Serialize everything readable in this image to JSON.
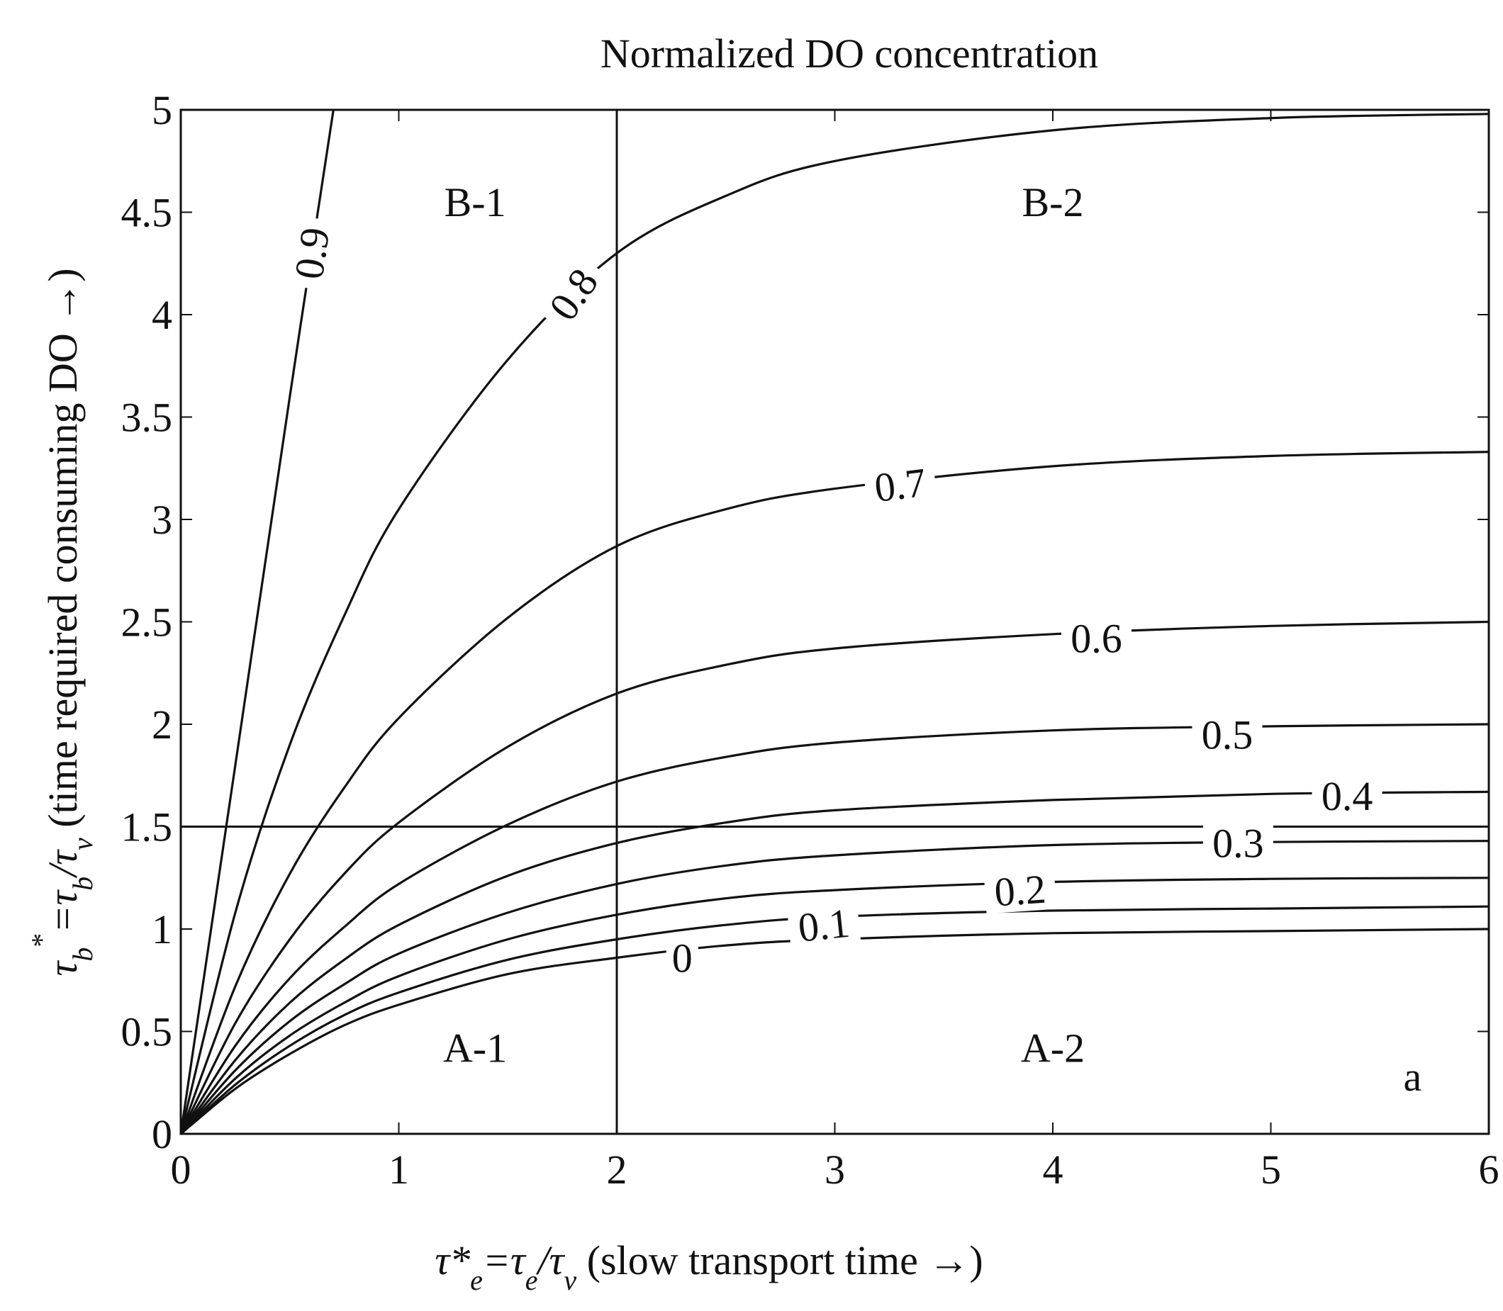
{
  "chart_data": {
    "type": "line",
    "title": "Normalized DO concentration",
    "xlabel": {
      "main": "τ*",
      "main_sub": "e",
      "eq": "=τ",
      "eq_sub": "e",
      "slash": "/τ",
      "slash_sub": "v",
      "desc": " (slow transport time →)"
    },
    "ylabel": {
      "main": "τ",
      "main_sub": "b",
      "star": "*",
      "eq": "=τ",
      "eq_sub": "b",
      "slash": "/τ",
      "slash_sub": "v",
      "desc": " (time required consuming DO →)"
    },
    "xlim": [
      0,
      6
    ],
    "ylim": [
      0,
      5
    ],
    "x_ticks": [
      0,
      1,
      2,
      3,
      4,
      5,
      6
    ],
    "x_tick_labels": [
      "0",
      "1",
      "2",
      "3",
      "4",
      "5",
      "6"
    ],
    "y_ticks": [
      0,
      0.5,
      1,
      1.5,
      2,
      2.5,
      3,
      3.5,
      4,
      4.5,
      5
    ],
    "y_tick_labels": [
      "0",
      "0.5",
      "1",
      "1.5",
      "2",
      "2.5",
      "3",
      "3.5",
      "4",
      "4.5",
      "5"
    ],
    "grid": false,
    "divider_lines": {
      "vertical_x": 2,
      "horizontal_y": 1.5
    },
    "series": [
      {
        "name": "0",
        "label": "0",
        "label_at": [
          2.3,
          0.86
        ],
        "label_angle": 0,
        "x": [
          0,
          0.25,
          0.5,
          0.75,
          1,
          1.5,
          2,
          2.5,
          3,
          4,
          5,
          6
        ],
        "y": [
          0,
          0.22,
          0.39,
          0.53,
          0.63,
          0.78,
          0.86,
          0.92,
          0.95,
          0.98,
          0.99,
          1.0
        ]
      },
      {
        "name": "0.1",
        "label": "0.1",
        "label_at": [
          2.95,
          1.02
        ],
        "label_angle": -6,
        "x": [
          0,
          0.25,
          0.5,
          0.75,
          1,
          1.5,
          2,
          2.5,
          3,
          4,
          5,
          6
        ],
        "y": [
          0,
          0.24,
          0.43,
          0.58,
          0.69,
          0.85,
          0.95,
          1.02,
          1.06,
          1.09,
          1.1,
          1.11
        ]
      },
      {
        "name": "0.2",
        "label": "0.2",
        "label_at": [
          3.85,
          1.19
        ],
        "label_angle": -4,
        "x": [
          0,
          0.25,
          0.5,
          0.75,
          1,
          1.5,
          2,
          2.5,
          3,
          4,
          5,
          6
        ],
        "y": [
          0,
          0.27,
          0.48,
          0.64,
          0.77,
          0.95,
          1.07,
          1.15,
          1.19,
          1.23,
          1.245,
          1.25
        ]
      },
      {
        "name": "0.3",
        "label": "0.3",
        "label_at": [
          4.85,
          1.42
        ],
        "label_angle": 0,
        "x": [
          0,
          0.25,
          0.5,
          0.75,
          1,
          1.5,
          2,
          2.5,
          3,
          4,
          5,
          6
        ],
        "y": [
          0,
          0.31,
          0.55,
          0.73,
          0.88,
          1.08,
          1.22,
          1.31,
          1.36,
          1.41,
          1.425,
          1.43
        ]
      },
      {
        "name": "0.4",
        "label": "0.4",
        "label_at": [
          5.35,
          1.65
        ],
        "label_angle": 0,
        "x": [
          0,
          0.25,
          0.5,
          0.75,
          1,
          1.5,
          2,
          2.5,
          3,
          4,
          5,
          6
        ],
        "y": [
          0,
          0.36,
          0.64,
          0.85,
          1.02,
          1.26,
          1.42,
          1.52,
          1.58,
          1.63,
          1.66,
          1.67
        ]
      },
      {
        "name": "0.5",
        "label": "0.5",
        "label_at": [
          4.8,
          1.95
        ],
        "label_angle": 0,
        "x": [
          0,
          0.25,
          0.5,
          0.75,
          1,
          1.5,
          2,
          2.5,
          3,
          4,
          5,
          6
        ],
        "y": [
          0,
          0.43,
          0.76,
          1.01,
          1.22,
          1.51,
          1.72,
          1.84,
          1.91,
          1.97,
          1.99,
          2.0
        ]
      },
      {
        "name": "0.6",
        "label": "0.6",
        "label_at": [
          4.2,
          2.42
        ],
        "label_angle": 0,
        "x": [
          0,
          0.25,
          0.5,
          0.75,
          1,
          1.5,
          2,
          2.5,
          3,
          4,
          5,
          6
        ],
        "y": [
          0,
          0.54,
          0.95,
          1.27,
          1.52,
          1.89,
          2.15,
          2.29,
          2.37,
          2.44,
          2.48,
          2.5
        ]
      },
      {
        "name": "0.7",
        "label": "0.7",
        "label_at": [
          3.3,
          3.17
        ],
        "label_angle": -7,
        "x": [
          0,
          0.25,
          0.5,
          0.75,
          1,
          1.5,
          2,
          2.5,
          3,
          4,
          5,
          6
        ],
        "y": [
          0,
          0.72,
          1.27,
          1.69,
          2.03,
          2.52,
          2.87,
          3.05,
          3.15,
          3.26,
          3.31,
          3.33
        ]
      },
      {
        "name": "0.8",
        "label": "0.8",
        "label_at": [
          1.8,
          4.1
        ],
        "label_angle": -55,
        "x": [
          0,
          0.25,
          0.5,
          0.75,
          1,
          1.5,
          2,
          2.5,
          3,
          4,
          5,
          6
        ],
        "y": [
          0,
          1.08,
          1.9,
          2.53,
          3.05,
          3.78,
          4.3,
          4.58,
          4.75,
          4.9,
          4.96,
          4.98
        ]
      },
      {
        "name": "0.9",
        "label": "0.9",
        "label_at": [
          0.6,
          4.3
        ],
        "label_angle": -82,
        "x": [
          0,
          0.25,
          0.5,
          0.7
        ],
        "y": [
          0,
          1.8,
          3.6,
          5.0
        ]
      }
    ],
    "annotations": [
      {
        "text": "B-1",
        "x": 1.35,
        "y": 4.55
      },
      {
        "text": "B-2",
        "x": 4.0,
        "y": 4.55
      },
      {
        "text": "A-1",
        "x": 1.35,
        "y": 0.42
      },
      {
        "text": "A-2",
        "x": 4.0,
        "y": 0.42
      },
      {
        "text": "a",
        "x": 5.65,
        "y": 0.28
      }
    ]
  }
}
